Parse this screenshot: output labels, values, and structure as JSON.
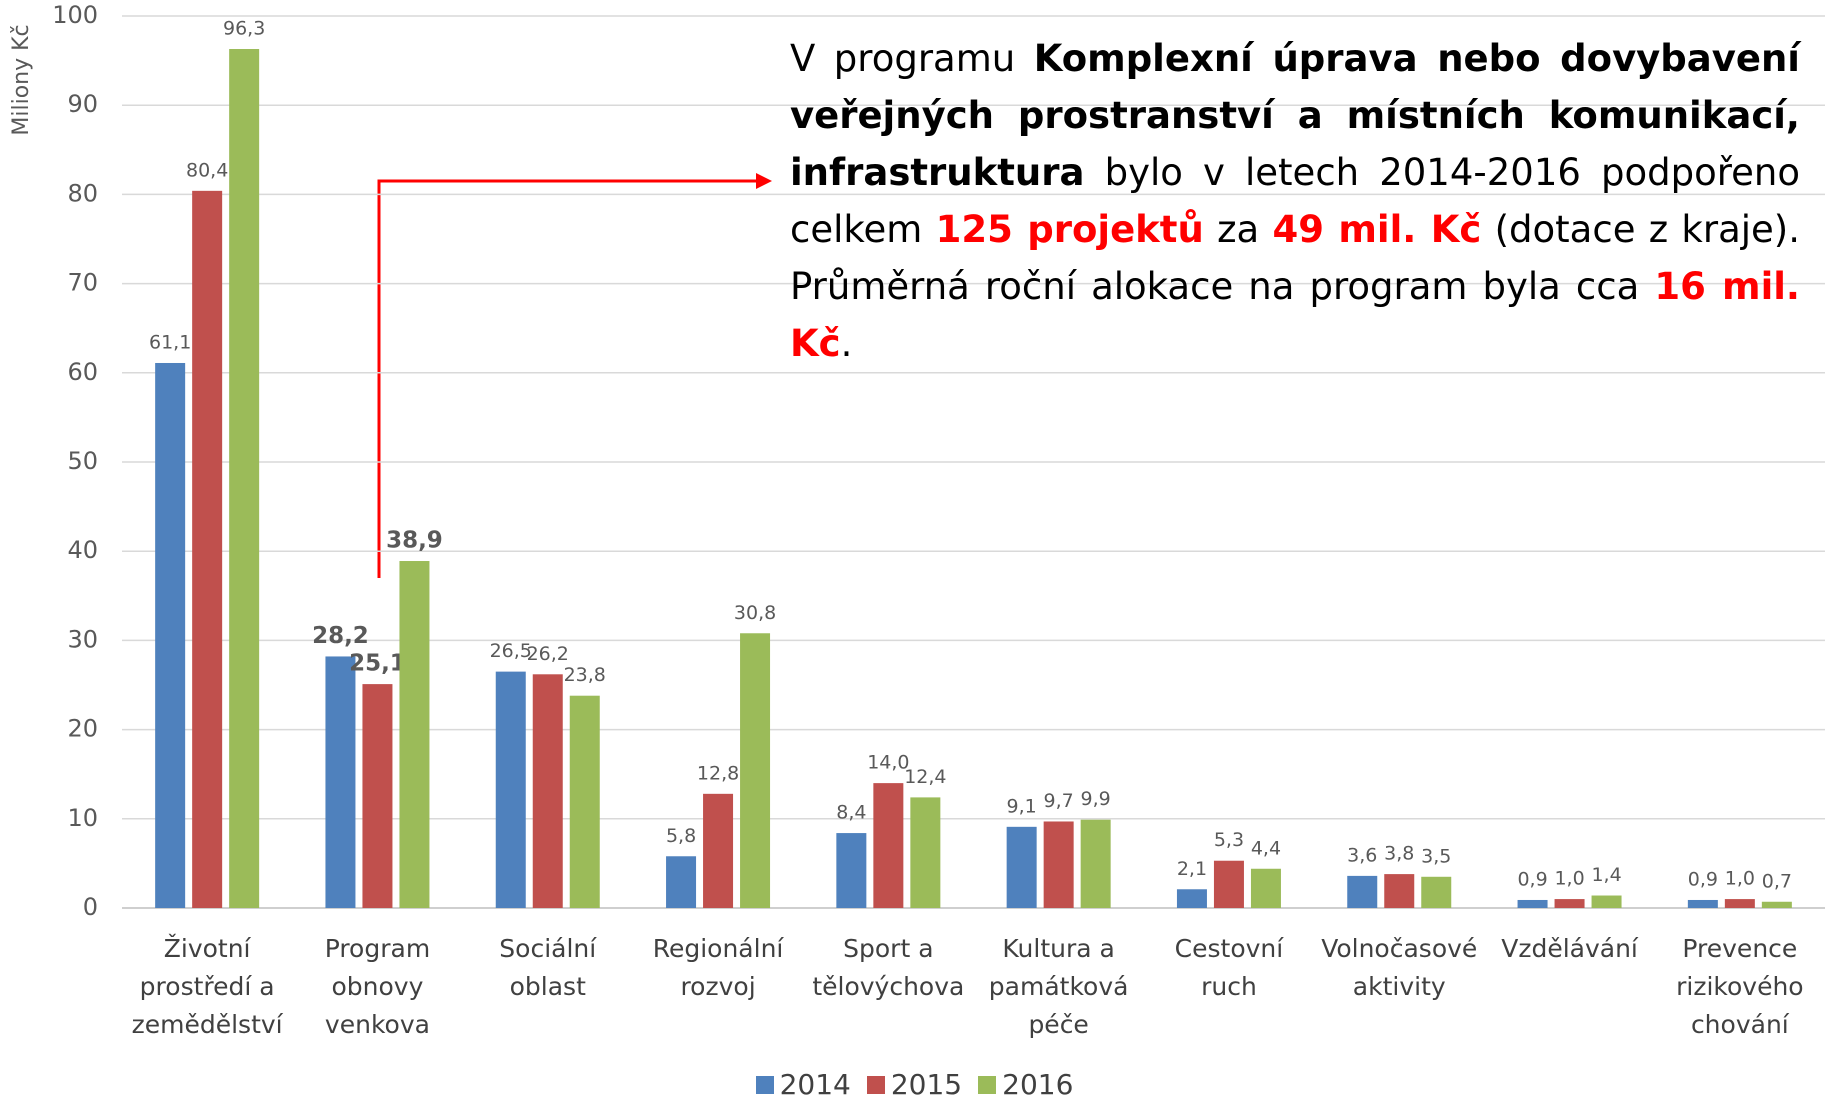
{
  "chart_data": {
    "type": "bar",
    "y_label": "Miliony Kč",
    "categories": [
      "Životní prostředí a zemědělství",
      "Program obnovy venkova",
      "Sociální oblast",
      "Regionální rozvoj",
      "Sport a tělovýchova",
      "Kultura a památková péče",
      "Cestovní ruch",
      "Volnočasové aktivity",
      "Vzdělávání",
      "Prevence rizikového chování"
    ],
    "series": [
      {
        "name": "2014",
        "color": "#4f81bd",
        "values": [
          61.1,
          28.2,
          26.5,
          5.8,
          8.4,
          9.1,
          2.1,
          3.6,
          0.9,
          0.9
        ],
        "value_labels": [
          "61,1",
          "28,2",
          "26,5",
          "5,8",
          "8,4",
          "9,1",
          "2,1",
          "3,6",
          "0,9",
          "0,9"
        ]
      },
      {
        "name": "2015",
        "color": "#c0504d",
        "values": [
          80.4,
          25.1,
          26.2,
          12.8,
          14.0,
          9.7,
          5.3,
          3.8,
          1.0,
          1.0
        ],
        "value_labels": [
          "80,4",
          "25,1",
          "26,2",
          "12,8",
          "14,0",
          "9,7",
          "5,3",
          "3,8",
          "1,0",
          "1,0"
        ]
      },
      {
        "name": "2016",
        "color": "#9bbb59",
        "values": [
          96.3,
          38.9,
          23.8,
          30.8,
          12.4,
          9.9,
          4.4,
          3.5,
          1.4,
          0.7
        ],
        "value_labels": [
          "96,3",
          "38,9",
          "23,8",
          "30,8",
          "12,4",
          "9,9",
          "4,4",
          "3,5",
          "1,4",
          "0,7"
        ]
      }
    ],
    "bold_labels_at": 1,
    "ylim": [
      0,
      100
    ],
    "yticks": [
      0,
      10,
      20,
      30,
      40,
      50,
      60,
      70,
      80,
      90,
      100
    ],
    "grid": true,
    "legend": "bottom",
    "annotation": [
      {
        "text": "V programu "
      },
      {
        "text": "Komplexní úprava nebo dovybavení veřejných prostranství a místních komunikací, infrastruktura",
        "bold": true
      },
      {
        "text": " bylo v letech 2014-2016 podpořeno celkem "
      },
      {
        "text": "125 projektů",
        "bold": true,
        "color": "#ff0000"
      },
      {
        "text": " za "
      },
      {
        "text": "49 mil. Kč",
        "bold": true,
        "color": "#ff0000"
      },
      {
        "text": " (dotace z kraje). Průměrná roční alokace na program byla cca "
      },
      {
        "text": "16 mil. Kč",
        "bold": true,
        "color": "#ff0000"
      },
      {
        "text": "."
      }
    ]
  }
}
